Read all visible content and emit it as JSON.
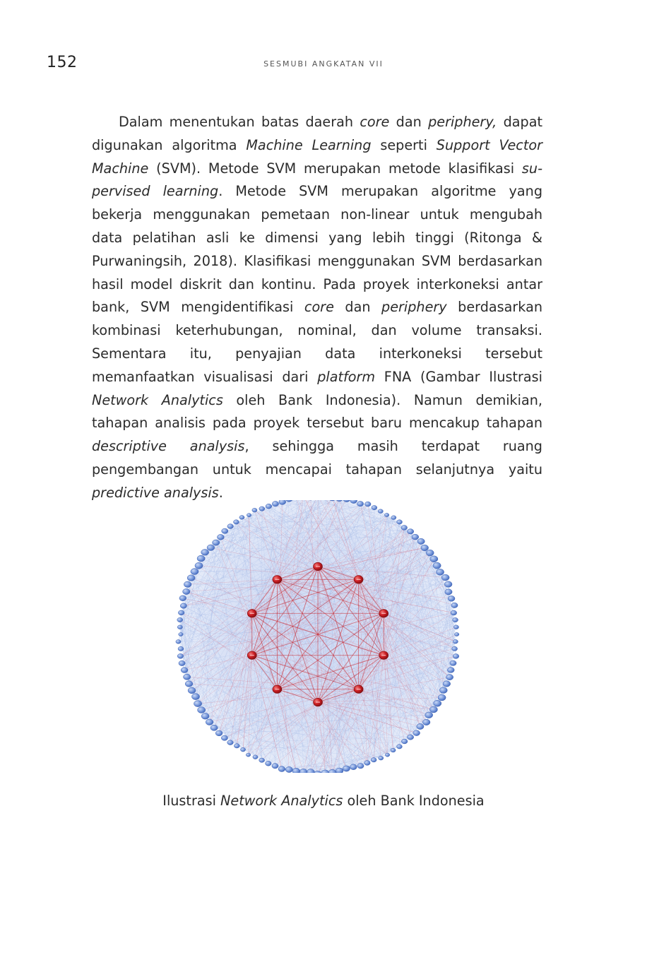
{
  "header": {
    "page_number": "152",
    "running_title": "SESMUBI ANGKATAN VII"
  },
  "paragraph": {
    "segments": [
      {
        "text": "Dalam menentukan batas daerah ",
        "italic": false
      },
      {
        "text": "core",
        "italic": true
      },
      {
        "text": " dan ",
        "italic": false
      },
      {
        "text": "periphery,",
        "italic": true
      },
      {
        "text": " dapat digunakan algoritma ",
        "italic": false
      },
      {
        "text": "Machine Learning",
        "italic": true
      },
      {
        "text": " seperti ",
        "italic": false
      },
      {
        "text": "Support Vector Machine",
        "italic": true
      },
      {
        "text": " (SVM). Metode SVM merupakan metode klasifikasi ",
        "italic": false
      },
      {
        "text": "su­pervised learning",
        "italic": true
      },
      {
        "text": ". Metode SVM merupakan algoritme yang bekerja menggunakan pemetaan non-linear untuk mengubah data pe­latihan asli ke dimensi yang lebih tinggi (Ritonga & Purwaningsih, 2018). Klasifikasi menggunakan SVM berdasarkan hasil model diskrit dan kontinu. Pada proyek interkoneksi antar bank, SVM mengidentifikasi ",
        "italic": false
      },
      {
        "text": "core",
        "italic": true
      },
      {
        "text": " dan ",
        "italic": false
      },
      {
        "text": "periphery",
        "italic": true
      },
      {
        "text": " berdasarkan kombinasi ke­terhubungan, nominal, dan volume transaksi. Sementara itu, pe­nyajian data interkoneksi tersebut memanfaatkan visualisasi dari ",
        "italic": false
      },
      {
        "text": "platform",
        "italic": true
      },
      {
        "text": " FNA (Gambar Ilustrasi ",
        "italic": false
      },
      {
        "text": "Network Analytics",
        "italic": true
      },
      {
        "text": " oleh Bank Indo­nesia). Namun demikian, tahapan analisis pada proyek tersebut baru mencakup tahapan ",
        "italic": false
      },
      {
        "text": "descriptive analysis",
        "italic": true
      },
      {
        "text": ", sehingga masih terdapat ruang pengembangan untuk mencapai tahapan selan­jutnya yaitu ",
        "italic": false
      },
      {
        "text": "predictive analysis",
        "italic": true
      },
      {
        "text": ".",
        "italic": false
      }
    ]
  },
  "figure": {
    "icon": "network-graph-illustration",
    "core_color": "#c81e24",
    "periphery_color": "#6f93d8",
    "core_node_count": 10,
    "periphery_node_count": 120
  },
  "caption": {
    "prefix": "Ilustrasi ",
    "italic": "Network Analytics",
    "suffix": " oleh Bank Indonesia"
  }
}
